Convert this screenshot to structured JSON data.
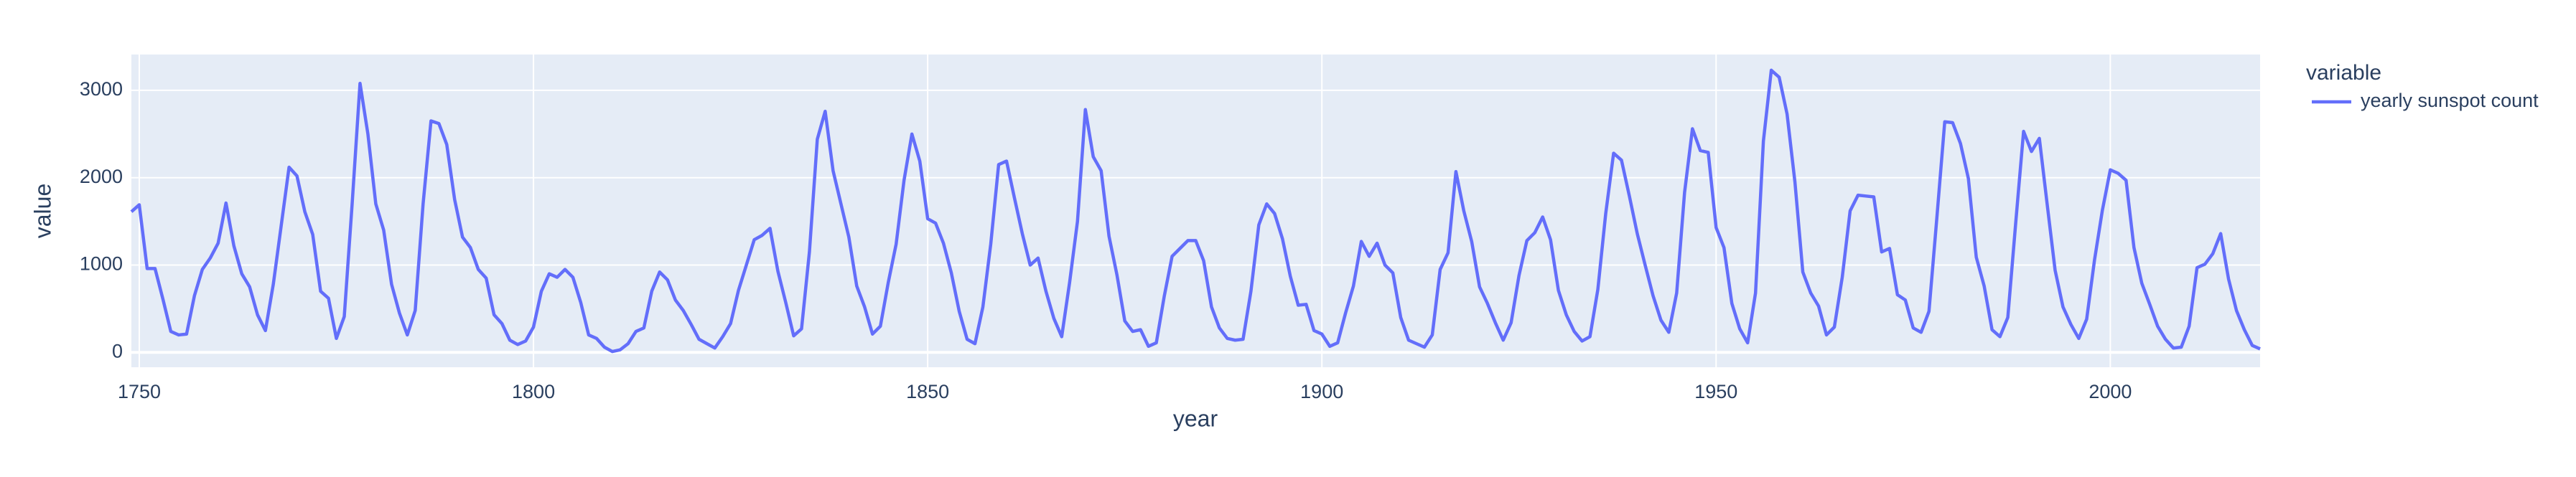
{
  "chart_data": {
    "type": "line",
    "x_label": "year",
    "y_label": "value",
    "legend_title": "variable",
    "x": [
      1749,
      1750,
      1751,
      1752,
      1753,
      1754,
      1755,
      1756,
      1757,
      1758,
      1759,
      1760,
      1761,
      1762,
      1763,
      1764,
      1765,
      1766,
      1767,
      1768,
      1769,
      1770,
      1771,
      1772,
      1773,
      1774,
      1775,
      1776,
      1777,
      1778,
      1779,
      1780,
      1781,
      1782,
      1783,
      1784,
      1785,
      1786,
      1787,
      1788,
      1789,
      1790,
      1791,
      1792,
      1793,
      1794,
      1795,
      1796,
      1797,
      1798,
      1799,
      1800,
      1801,
      1802,
      1803,
      1804,
      1805,
      1806,
      1807,
      1808,
      1809,
      1810,
      1811,
      1812,
      1813,
      1814,
      1815,
      1816,
      1817,
      1818,
      1819,
      1820,
      1821,
      1822,
      1823,
      1824,
      1825,
      1826,
      1827,
      1828,
      1829,
      1830,
      1831,
      1832,
      1833,
      1834,
      1835,
      1836,
      1837,
      1838,
      1839,
      1840,
      1841,
      1842,
      1843,
      1844,
      1845,
      1846,
      1847,
      1848,
      1849,
      1850,
      1851,
      1852,
      1853,
      1854,
      1855,
      1856,
      1857,
      1858,
      1859,
      1860,
      1861,
      1862,
      1863,
      1864,
      1865,
      1866,
      1867,
      1868,
      1869,
      1870,
      1871,
      1872,
      1873,
      1874,
      1875,
      1876,
      1877,
      1878,
      1879,
      1880,
      1881,
      1882,
      1883,
      1884,
      1885,
      1886,
      1887,
      1888,
      1889,
      1890,
      1891,
      1892,
      1893,
      1894,
      1895,
      1896,
      1897,
      1898,
      1899,
      1900,
      1901,
      1902,
      1903,
      1904,
      1905,
      1906,
      1907,
      1908,
      1909,
      1910,
      1911,
      1912,
      1913,
      1914,
      1915,
      1916,
      1917,
      1918,
      1919,
      1920,
      1921,
      1922,
      1923,
      1924,
      1925,
      1926,
      1927,
      1928,
      1929,
      1930,
      1931,
      1932,
      1933,
      1934,
      1935,
      1936,
      1937,
      1938,
      1939,
      1940,
      1941,
      1942,
      1943,
      1944,
      1945,
      1946,
      1947,
      1948,
      1949,
      1950,
      1951,
      1952,
      1953,
      1954,
      1955,
      1956,
      1957,
      1958,
      1959,
      1960,
      1961,
      1962,
      1963,
      1964,
      1965,
      1966,
      1967,
      1968,
      1969,
      1970,
      1971,
      1972,
      1973,
      1974,
      1975,
      1976,
      1977,
      1978,
      1979,
      1980,
      1981,
      1982,
      1983,
      1984,
      1985,
      1986,
      1987,
      1988,
      1989,
      1990,
      1991,
      1992,
      1993,
      1994,
      1995,
      1996,
      1997,
      1998,
      1999,
      2000,
      2001,
      2002,
      2003,
      2004,
      2005,
      2006,
      2007,
      2008,
      2009,
      2010,
      2011,
      2012,
      2013,
      2014,
      2015,
      2016,
      2017,
      2018,
      2019
    ],
    "series": [
      {
        "name": "yearly sunspot count",
        "color": "#636efa",
        "values": [
          1610,
          1690,
          960,
          960,
          610,
          240,
          200,
          210,
          650,
          950,
          1080,
          1250,
          1710,
          1220,
          900,
          750,
          430,
          250,
          780,
          1450,
          2120,
          2020,
          1610,
          1350,
          700,
          620,
          160,
          410,
          1700,
          3080,
          2500,
          1700,
          1400,
          780,
          450,
          200,
          480,
          1700,
          2650,
          2620,
          2380,
          1750,
          1320,
          1200,
          950,
          850,
          430,
          330,
          140,
          90,
          130,
          290,
          700,
          900,
          860,
          950,
          860,
          570,
          200,
          160,
          60,
          10,
          30,
          100,
          240,
          280,
          700,
          920,
          830,
          600,
          480,
          320,
          150,
          100,
          50,
          180,
          330,
          710,
          1000,
          1290,
          1340,
          1420,
          930,
          570,
          190,
          270,
          1150,
          2440,
          2760,
          2080,
          1700,
          1320,
          760,
          520,
          210,
          300,
          800,
          1240,
          1970,
          2500,
          2190,
          1530,
          1480,
          1250,
          910,
          470,
          150,
          100,
          520,
          1240,
          2150,
          2190,
          1770,
          1360,
          1000,
          1080,
          700,
          390,
          180,
          800,
          1500,
          2780,
          2240,
          2080,
          1330,
          890,
          360,
          240,
          260,
          70,
          110,
          640,
          1100,
          1190,
          1280,
          1280,
          1050,
          520,
          280,
          160,
          140,
          150,
          700,
          1460,
          1700,
          1590,
          1300,
          870,
          540,
          550,
          250,
          210,
          70,
          110,
          450,
          760,
          1270,
          1100,
          1250,
          1000,
          910,
          400,
          140,
          100,
          60,
          200,
          950,
          1140,
          2070,
          1620,
          1270,
          750,
          560,
          340,
          140,
          340,
          880,
          1280,
          1370,
          1550,
          1290,
          710,
          430,
          240,
          130,
          180,
          720,
          1590,
          2280,
          2200,
          1790,
          1360,
          1000,
          650,
          370,
          230,
          680,
          1830,
          2560,
          2310,
          2290,
          1430,
          1200,
          560,
          270,
          110,
          680,
          2420,
          3230,
          3150,
          2730,
          1950,
          920,
          680,
          530,
          200,
          290,
          860,
          1620,
          1800,
          1790,
          1780,
          1150,
          1190,
          660,
          600,
          280,
          230,
          470,
          1540,
          2640,
          2630,
          2390,
          1990,
          1090,
          760,
          260,
          180,
          400,
          1480,
          2530,
          2300,
          2450,
          1690,
          940,
          520,
          320,
          160,
          380,
          1060,
          1630,
          2090,
          2050,
          1970,
          1200,
          790,
          550,
          300,
          150,
          50,
          60,
          300,
          970,
          1010,
          1130,
          1360,
          840,
          480,
          260,
          80,
          40
        ]
      }
    ],
    "xlim": [
      1749,
      2019
    ],
    "xticks": [
      1750,
      1800,
      1850,
      1900,
      1950,
      2000
    ],
    "ylim": [
      -170,
      3410
    ],
    "yticks": [
      0,
      1000,
      2000,
      3000
    ],
    "grid": true,
    "legend": "right"
  }
}
